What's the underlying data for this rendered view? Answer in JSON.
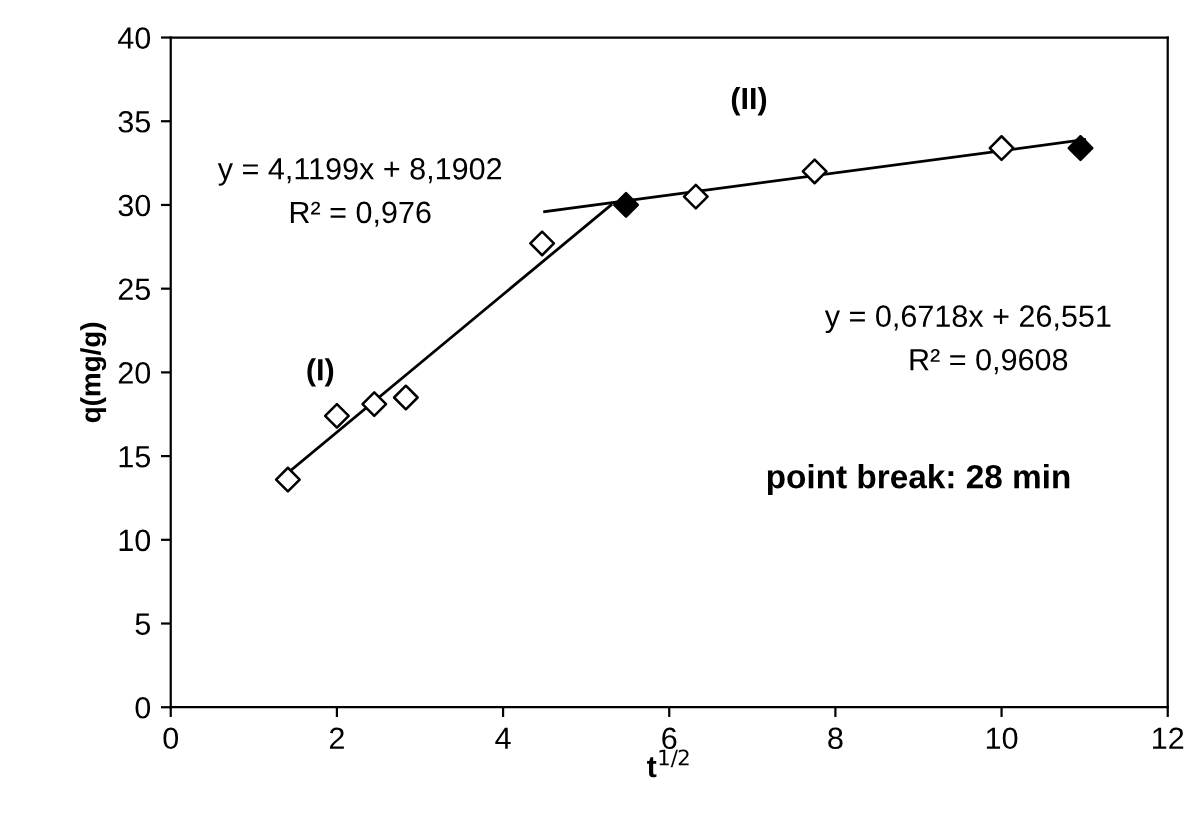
{
  "chart_data": {
    "type": "scatter",
    "xlabel": "t$^{1/2}$",
    "ylabel": "q(mg/g)",
    "xlim": [
      0,
      12
    ],
    "ylim": [
      0,
      40
    ],
    "xticks": [
      0,
      2,
      4,
      6,
      8,
      10,
      12
    ],
    "yticks": [
      0,
      5,
      10,
      15,
      20,
      25,
      30,
      35,
      40
    ],
    "grid": false,
    "legend": false,
    "marker": "diamond",
    "series": [
      {
        "color": "#ffffff",
        "x": [
          1.41,
          2.0,
          2.45,
          2.83,
          4.47,
          6.32,
          7.75,
          10.0
        ],
        "values": [
          13.6,
          17.4,
          18.1,
          18.5,
          27.7,
          30.5,
          32.0,
          33.4
        ]
      },
      {
        "color": "#000000",
        "x": [
          5.48,
          10.95
        ],
        "values": [
          30.0,
          33.4
        ]
      },
      {
        "type": "line",
        "color": "#000000",
        "marker": "none",
        "x": [
          1.41,
          5.3
        ],
        "values": [
          14.0,
          30.0
        ]
      },
      {
        "type": "line",
        "color": "#000000",
        "marker": "none",
        "x": [
          4.5,
          11.0
        ],
        "values": [
          29.6,
          33.9
        ]
      }
    ],
    "annotations": [
      "y = 4,1199x + 8,1902\nR² = 0,976",
      "(I)",
      "y = 0,6718x + 26,551\nR² = 0,9608",
      "(II)",
      "point break: 28 min"
    ]
  }
}
